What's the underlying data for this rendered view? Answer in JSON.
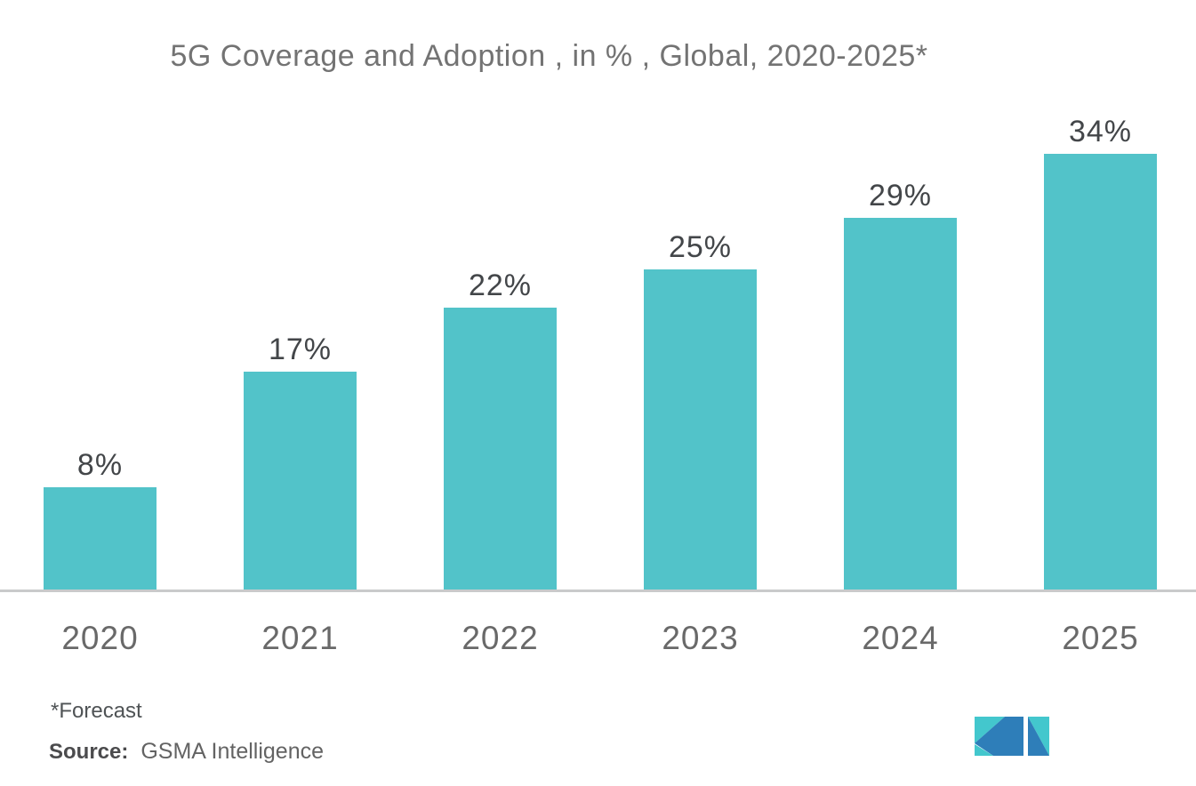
{
  "title": "5G Coverage and Adoption , in % , Global, 2020-2025*",
  "footnote": "*Forecast",
  "source": {
    "label": "Source:",
    "value": "GSMA Intelligence"
  },
  "logo": {
    "name": "mordor-intelligence-m-logo"
  },
  "colors": {
    "bar": "#52C3C9",
    "axis": "#C9CACB",
    "title_text": "#737373",
    "value_label_text": "#434649",
    "tick_text": "#696969",
    "footer_text": "#4F5355",
    "logo_teal": "#43C7CD",
    "logo_blue": "#2E7EB9"
  },
  "chart_data": {
    "type": "bar",
    "title": "5G Coverage and Adoption , in % , Global, 2020-2025*",
    "categories": [
      "2020",
      "2021",
      "2022",
      "2023",
      "2024",
      "2025"
    ],
    "values": [
      8,
      17,
      22,
      25,
      29,
      34
    ],
    "labels": [
      "8%",
      "17%",
      "22%",
      "25%",
      "29%",
      "34%"
    ],
    "unit": "%",
    "xlabel": "",
    "ylabel": "",
    "ylim": [
      0,
      46
    ],
    "grid": false,
    "legend": false,
    "y_axis_visible": false,
    "bar_color": "#52C3C9",
    "footnote": "*Forecast",
    "source": "GSMA Intelligence"
  }
}
